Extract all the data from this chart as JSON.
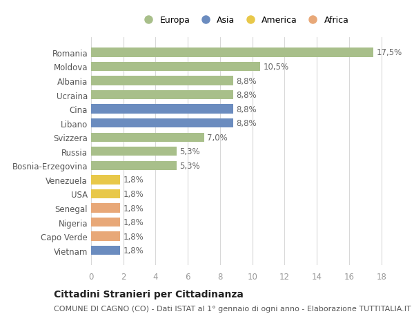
{
  "title": "Cittadini Stranieri per Cittadinanza",
  "subtitle": "COMUNE DI CAGNO (CO) - Dati ISTAT al 1° gennaio di ogni anno - Elaborazione TUTTITALIA.IT",
  "countries": [
    "Romania",
    "Moldova",
    "Albania",
    "Ucraina",
    "Cina",
    "Libano",
    "Svizzera",
    "Russia",
    "Bosnia-Erzegovina",
    "Venezuela",
    "USA",
    "Senegal",
    "Nigeria",
    "Capo Verde",
    "Vietnam"
  ],
  "values": [
    17.5,
    10.5,
    8.8,
    8.8,
    8.8,
    8.8,
    7.0,
    5.3,
    5.3,
    1.8,
    1.8,
    1.8,
    1.8,
    1.8,
    1.8
  ],
  "labels": [
    "17,5%",
    "10,5%",
    "8,8%",
    "8,8%",
    "8,8%",
    "8,8%",
    "7,0%",
    "5,3%",
    "5,3%",
    "1,8%",
    "1,8%",
    "1,8%",
    "1,8%",
    "1,8%",
    "1,8%"
  ],
  "categories": [
    "Europa",
    "Asia",
    "America",
    "Africa"
  ],
  "continent": [
    "Europa",
    "Europa",
    "Europa",
    "Europa",
    "Asia",
    "Asia",
    "Europa",
    "Europa",
    "Europa",
    "America",
    "America",
    "Africa",
    "Africa",
    "Africa",
    "Asia"
  ],
  "colors": {
    "Europa": "#a8bf8a",
    "Asia": "#6b8cbf",
    "America": "#e8c84a",
    "Africa": "#e8a878"
  },
  "xlim": [
    0,
    19
  ],
  "xticks": [
    0,
    2,
    4,
    6,
    8,
    10,
    12,
    14,
    16,
    18
  ],
  "background_color": "#ffffff",
  "grid_color": "#d8d8d8",
  "bar_height": 0.65,
  "label_fontsize": 8.5,
  "title_fontsize": 10,
  "subtitle_fontsize": 8,
  "tick_fontsize": 8.5,
  "legend_fontsize": 9
}
